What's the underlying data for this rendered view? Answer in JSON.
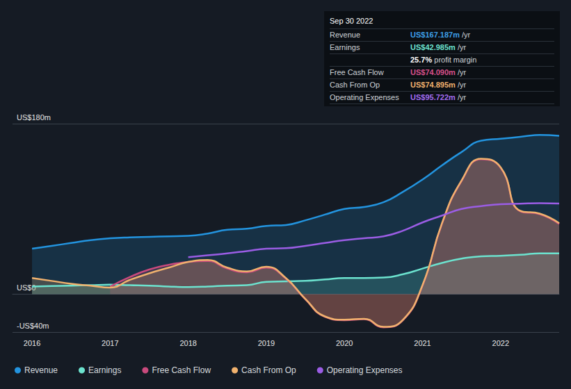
{
  "chart_data": {
    "type": "line",
    "x": [
      2016,
      2016.25,
      2016.5,
      2016.75,
      2017,
      2017.25,
      2017.5,
      2017.75,
      2018,
      2018.25,
      2018.5,
      2018.75,
      2019,
      2019.25,
      2019.5,
      2019.75,
      2020,
      2020.25,
      2020.5,
      2020.75,
      2021,
      2021.25,
      2021.5,
      2021.75,
      2022,
      2022.25,
      2022.5,
      2022.75
    ],
    "xlim": [
      2015.75,
      2022.75
    ],
    "xticks": [
      2016,
      2017,
      2018,
      2019,
      2020,
      2021,
      2022
    ],
    "ylim": [
      -40,
      180
    ],
    "yticks": [
      {
        "value": -40,
        "label": "-US$40m"
      },
      {
        "value": 0,
        "label": "US$0"
      },
      {
        "value": 180,
        "label": "US$180m"
      }
    ],
    "grid": true,
    "legend": "bottom",
    "series": [
      {
        "name": "Revenue",
        "color": "#2394df",
        "values": [
          48,
          51,
          54,
          57,
          59,
          60,
          60.5,
          61,
          61.5,
          64,
          68,
          69,
          72,
          73,
          78,
          84,
          90,
          92,
          97,
          108,
          121,
          136,
          150,
          162,
          164,
          166,
          168,
          167.187
        ]
      },
      {
        "name": "Earnings",
        "color": "#6ce3cf",
        "values": [
          8,
          8.5,
          9,
          9.5,
          10,
          9.5,
          9,
          8,
          7.5,
          8,
          9,
          9.5,
          13,
          13.5,
          14,
          15.5,
          17,
          17,
          17.5,
          21,
          27,
          33,
          37.5,
          40,
          40.5,
          41.5,
          43,
          42.985
        ]
      },
      {
        "name": "Free Cash Flow",
        "color": "#c94a7d",
        "values": [
          null,
          null,
          null,
          null,
          8,
          18,
          26,
          31,
          34,
          35,
          27,
          23,
          28,
          16.5,
          -5.5,
          -24,
          -27.5,
          -26.5,
          -35,
          -27.5,
          9,
          74.5,
          119.5,
          142.5,
          133.5,
          87.5,
          84.5,
          74.09
        ]
      },
      {
        "name": "Cash From Op",
        "color": "#f1b26e",
        "values": [
          17,
          14,
          11,
          9,
          7,
          15,
          22,
          28,
          34,
          36,
          28,
          24,
          29,
          17,
          -5,
          -23.5,
          -27,
          -26,
          -34.5,
          -27,
          9.5,
          75,
          120,
          143,
          134,
          88,
          85,
          74.895
        ]
      },
      {
        "name": "Operating Expenses",
        "color": "#9b5de5",
        "values": [
          null,
          null,
          null,
          null,
          null,
          null,
          null,
          null,
          39,
          41,
          43,
          45.5,
          48,
          48.5,
          51,
          54,
          57,
          59,
          61,
          67,
          75.7,
          83,
          90,
          93,
          95,
          95.5,
          96,
          95.722
        ]
      }
    ],
    "info_box": {
      "title": "Sep 30 2022",
      "rows": [
        {
          "label": "Revenue",
          "value": "US$167.187m",
          "unit": "/yr",
          "color": "#3d9fe8"
        },
        {
          "label": "Earnings",
          "value": "US$42.985m",
          "unit": "/yr",
          "color": "#6ce3cf"
        },
        {
          "label": null,
          "value": "25.7%",
          "unit": "profit margin",
          "color": "#ffffff"
        },
        {
          "label": "Free Cash Flow",
          "value": "US$74.090m",
          "unit": "/yr",
          "color": "#d8508a"
        },
        {
          "label": "Cash From Op",
          "value": "US$74.895m",
          "unit": "/yr",
          "color": "#f1b26e"
        },
        {
          "label": "Operating Expenses",
          "value": "US$95.722m",
          "unit": "/yr",
          "color": "#a36cf0"
        }
      ]
    }
  }
}
